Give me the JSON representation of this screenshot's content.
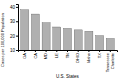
{
  "chart_data": {
    "type": "bar",
    "categories": [
      "GA",
      "CA",
      "MD",
      "LE",
      "TN",
      "OHIO",
      "Idaho",
      "TX",
      "Tennessee\nCharlotte"
    ],
    "values": [
      38,
      35,
      29,
      26,
      25,
      24,
      23,
      20,
      18
    ],
    "color": "#b0b0b0",
    "xlabel": "U.S. States",
    "ylabel": "Cases per 100,000 Population",
    "ylim": [
      10,
      42
    ],
    "yticks": [
      10,
      20,
      30,
      40
    ],
    "grid": false
  }
}
